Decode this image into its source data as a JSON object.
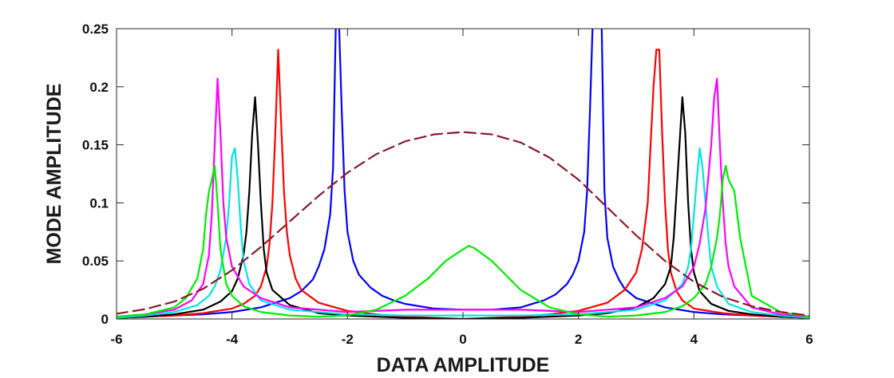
{
  "chart_data": {
    "type": "line",
    "title": "",
    "xlabel": "DATA  AMPLITUDE",
    "ylabel": "MODE  AMPLITUDE",
    "xlim": [
      -6,
      6
    ],
    "ylim": [
      0,
      0.25
    ],
    "xticks": [
      -6,
      -4,
      -2,
      0,
      2,
      4,
      6
    ],
    "xtick_labels": [
      "-6",
      "-4",
      "-2",
      "0",
      "2",
      "4",
      "6"
    ],
    "yticks": [
      0,
      0.05,
      0.1,
      0.15,
      0.2,
      0.25
    ],
    "ytick_labels": [
      "0",
      "0.05",
      "0.1",
      "0.15",
      "0.2",
      "0.25"
    ],
    "grid": false,
    "box": true,
    "series": [
      {
        "color": "#0000ff",
        "dash": "solid",
        "x": [
          -6.0,
          -5.5,
          -5.0,
          -4.5,
          -4.0,
          -3.5,
          -3.0,
          -2.8,
          -2.6,
          -2.5,
          -2.4,
          -2.3,
          -2.25,
          -2.2,
          -2.15,
          -2.1,
          -2.05,
          -2.0,
          -1.9,
          -1.8,
          -1.6,
          -1.4,
          -1.2,
          -1.0,
          -0.5,
          0.0,
          0.5,
          1.0,
          1.2,
          1.4,
          1.6,
          1.8,
          1.9,
          2.0,
          2.1,
          2.15,
          2.2,
          2.25,
          2.3,
          2.35,
          2.4,
          2.45,
          2.5,
          2.6,
          2.7,
          2.8,
          3.0,
          3.5,
          4.0,
          4.5,
          5.0,
          5.5,
          6.0
        ],
        "y": [
          0.001,
          0.002,
          0.003,
          0.004,
          0.006,
          0.01,
          0.018,
          0.024,
          0.034,
          0.045,
          0.06,
          0.09,
          0.13,
          0.26,
          0.26,
          0.18,
          0.11,
          0.075,
          0.05,
          0.038,
          0.027,
          0.02,
          0.016,
          0.013,
          0.009,
          0.008,
          0.008,
          0.01,
          0.013,
          0.016,
          0.021,
          0.03,
          0.038,
          0.05,
          0.075,
          0.11,
          0.18,
          0.26,
          0.26,
          0.26,
          0.26,
          0.11,
          0.07,
          0.045,
          0.034,
          0.026,
          0.018,
          0.01,
          0.006,
          0.004,
          0.003,
          0.002,
          0.001
        ]
      },
      {
        "color": "#ff0000",
        "dash": "solid",
        "x": [
          -6.0,
          -5.5,
          -5.0,
          -4.5,
          -4.0,
          -3.8,
          -3.6,
          -3.5,
          -3.4,
          -3.35,
          -3.3,
          -3.25,
          -3.2,
          -3.15,
          -3.1,
          -3.05,
          -3.0,
          -2.9,
          -2.8,
          -2.5,
          -2.0,
          -1.5,
          -1.0,
          0.0,
          1.0,
          1.5,
          2.0,
          2.5,
          2.8,
          3.0,
          3.1,
          3.2,
          3.25,
          3.3,
          3.35,
          3.4,
          3.45,
          3.5,
          3.55,
          3.6,
          3.7,
          3.8,
          4.0,
          4.5,
          5.0,
          5.5,
          6.0
        ],
        "y": [
          0.001,
          0.002,
          0.003,
          0.005,
          0.009,
          0.013,
          0.02,
          0.028,
          0.045,
          0.065,
          0.1,
          0.16,
          0.232,
          0.17,
          0.11,
          0.075,
          0.055,
          0.035,
          0.025,
          0.014,
          0.007,
          0.004,
          0.002,
          0.0,
          0.002,
          0.004,
          0.007,
          0.014,
          0.025,
          0.04,
          0.06,
          0.1,
          0.15,
          0.2,
          0.232,
          0.232,
          0.16,
          0.1,
          0.06,
          0.04,
          0.024,
          0.016,
          0.009,
          0.005,
          0.003,
          0.002,
          0.001
        ]
      },
      {
        "color": "#000000",
        "dash": "solid",
        "x": [
          -6.0,
          -5.5,
          -5.0,
          -4.5,
          -4.2,
          -4.0,
          -3.9,
          -3.8,
          -3.75,
          -3.7,
          -3.65,
          -3.6,
          -3.55,
          -3.5,
          -3.45,
          -3.4,
          -3.3,
          -3.0,
          -2.5,
          -2.0,
          -1.0,
          0.0,
          1.0,
          2.0,
          2.5,
          3.0,
          3.3,
          3.5,
          3.6,
          3.65,
          3.7,
          3.75,
          3.8,
          3.85,
          3.9,
          3.95,
          4.0,
          4.1,
          4.3,
          4.6,
          5.0,
          5.5,
          6.0
        ],
        "y": [
          0.001,
          0.002,
          0.004,
          0.008,
          0.015,
          0.024,
          0.035,
          0.055,
          0.075,
          0.11,
          0.16,
          0.191,
          0.15,
          0.1,
          0.06,
          0.04,
          0.025,
          0.012,
          0.005,
          0.003,
          0.001,
          0.0,
          0.001,
          0.003,
          0.005,
          0.01,
          0.018,
          0.03,
          0.045,
          0.07,
          0.11,
          0.15,
          0.191,
          0.16,
          0.1,
          0.06,
          0.04,
          0.024,
          0.013,
          0.007,
          0.004,
          0.002,
          0.001
        ]
      },
      {
        "color": "#00e5e5",
        "dash": "solid",
        "x": [
          -6.0,
          -5.5,
          -5.0,
          -4.6,
          -4.4,
          -4.3,
          -4.2,
          -4.1,
          -4.05,
          -4.0,
          -3.95,
          -3.9,
          -3.85,
          -3.8,
          -3.7,
          -3.5,
          -3.0,
          -2.0,
          -1.0,
          0.0,
          1.0,
          2.0,
          3.0,
          3.5,
          3.8,
          3.9,
          3.95,
          4.0,
          4.05,
          4.1,
          4.15,
          4.2,
          4.25,
          4.3,
          4.4,
          4.6,
          5.0,
          5.5,
          6.0
        ],
        "y": [
          0.001,
          0.003,
          0.006,
          0.012,
          0.02,
          0.028,
          0.042,
          0.07,
          0.1,
          0.14,
          0.147,
          0.12,
          0.08,
          0.05,
          0.03,
          0.016,
          0.008,
          0.004,
          0.003,
          0.003,
          0.003,
          0.004,
          0.008,
          0.016,
          0.03,
          0.045,
          0.06,
          0.09,
          0.12,
          0.147,
          0.13,
          0.1,
          0.07,
          0.045,
          0.028,
          0.013,
          0.006,
          0.003,
          0.001
        ]
      },
      {
        "color": "#ff00ff",
        "dash": "solid",
        "x": [
          -6.0,
          -5.5,
          -5.0,
          -4.7,
          -4.5,
          -4.4,
          -4.35,
          -4.3,
          -4.25,
          -4.2,
          -4.15,
          -4.1,
          -4.0,
          -3.8,
          -3.5,
          -3.0,
          -2.0,
          -1.0,
          0.0,
          1.0,
          2.0,
          3.0,
          3.5,
          3.8,
          4.0,
          4.1,
          4.2,
          4.3,
          4.35,
          4.4,
          4.45,
          4.5,
          4.55,
          4.6,
          4.7,
          5.0,
          5.5,
          6.0
        ],
        "y": [
          0.002,
          0.004,
          0.008,
          0.016,
          0.03,
          0.055,
          0.09,
          0.15,
          0.207,
          0.16,
          0.1,
          0.07,
          0.045,
          0.028,
          0.018,
          0.01,
          0.006,
          0.008,
          0.008,
          0.008,
          0.006,
          0.01,
          0.018,
          0.028,
          0.045,
          0.065,
          0.095,
          0.15,
          0.19,
          0.207,
          0.15,
          0.1,
          0.065,
          0.045,
          0.028,
          0.01,
          0.004,
          0.002
        ]
      },
      {
        "color": "#00ee00",
        "dash": "solid",
        "x": [
          -6.0,
          -5.5,
          -5.0,
          -4.8,
          -4.6,
          -4.5,
          -4.45,
          -4.4,
          -4.35,
          -4.3,
          -4.25,
          -4.2,
          -4.1,
          -4.0,
          -3.8,
          -3.5,
          -3.0,
          -2.5,
          -2.0,
          -1.5,
          -1.0,
          -0.6,
          -0.3,
          0.0,
          0.1,
          0.2,
          0.5,
          1.0,
          1.5,
          2.0,
          2.5,
          3.0,
          3.5,
          3.8,
          4.0,
          4.2,
          4.3,
          4.4,
          4.45,
          4.5,
          4.55,
          4.6,
          4.7,
          4.8,
          5.0,
          5.5,
          6.0
        ],
        "y": [
          0.002,
          0.004,
          0.01,
          0.018,
          0.035,
          0.06,
          0.09,
          0.11,
          0.12,
          0.132,
          0.1,
          0.06,
          0.03,
          0.02,
          0.011,
          0.006,
          0.003,
          0.002,
          0.003,
          0.008,
          0.02,
          0.035,
          0.05,
          0.06,
          0.063,
          0.061,
          0.05,
          0.025,
          0.01,
          0.004,
          0.002,
          0.003,
          0.006,
          0.011,
          0.018,
          0.03,
          0.045,
          0.07,
          0.09,
          0.12,
          0.132,
          0.12,
          0.11,
          0.07,
          0.02,
          0.006,
          0.002
        ]
      },
      {
        "color": "#8b1a2a",
        "dash": "dashed",
        "x": [
          -6.0,
          -5.5,
          -5.0,
          -4.5,
          -4.0,
          -3.5,
          -3.0,
          -2.5,
          -2.0,
          -1.5,
          -1.0,
          -0.5,
          0.0,
          0.5,
          1.0,
          1.5,
          2.0,
          2.5,
          3.0,
          3.5,
          4.0,
          4.5,
          5.0,
          5.5,
          6.0
        ],
        "y": [
          0.0045,
          0.0085,
          0.015,
          0.026,
          0.042,
          0.062,
          0.084,
          0.106,
          0.126,
          0.142,
          0.153,
          0.159,
          0.161,
          0.159,
          0.152,
          0.139,
          0.12,
          0.096,
          0.072,
          0.05,
          0.032,
          0.019,
          0.011,
          0.006,
          0.003
        ]
      }
    ]
  }
}
